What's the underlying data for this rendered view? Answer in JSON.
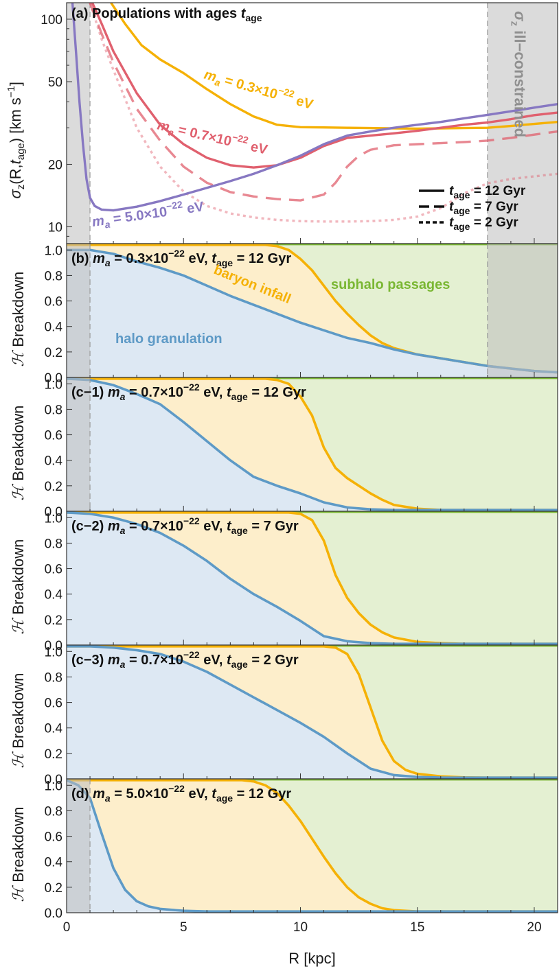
{
  "colors": {
    "orange": "#f5b106",
    "red": "#e0606e",
    "purple": "#8778c2",
    "blue": "#5e9ac6",
    "green": "#7ab733",
    "fill_blue": "#dde8f3",
    "fill_orange": "#fdeecb",
    "fill_green": "#e4f0d2",
    "shade": "#bdbdbd"
  },
  "chart_data": [
    {
      "id": "a",
      "type": "line",
      "title": "(a) Populations with ages",
      "title_var": "t",
      "title_sub": "age",
      "ylabel": "σz(R,tage) [km s−1]",
      "ylabel_parts": {
        "sigma": "σ",
        "z": "z",
        "args": "(R,",
        "t": "t",
        "age": "age",
        "close": ") [km s",
        "exp": "−1",
        "end": "]"
      },
      "yscale": "log",
      "ylim": [
        8.3,
        120
      ],
      "xlim": [
        0,
        21
      ],
      "yticks": [
        10,
        20,
        50,
        100
      ],
      "shaded_regions": [
        [
          0,
          1
        ],
        [
          18,
          21
        ]
      ],
      "shade_label": "σz ill−constrained",
      "shade_label_parts": {
        "sigma": "σ",
        "z": "z",
        "rest": " ill−constrained"
      },
      "annotations": [
        {
          "m": "m",
          "a": "a",
          "text": " = 0.3×10",
          "exp": "−22",
          "unit": " eV",
          "color": "orange"
        },
        {
          "m": "m",
          "a": "a",
          "text": " = 0.7×10",
          "exp": "−22",
          "unit": " eV",
          "color": "red"
        },
        {
          "m": "m",
          "a": "a",
          "text": " = 5.0×10",
          "exp": "−22",
          "unit": " eV",
          "color": "purple"
        }
      ],
      "legend": [
        {
          "t": "t",
          "sub": "age",
          "label": " = 12 Gyr",
          "dash": "solid"
        },
        {
          "t": "t",
          "sub": "age",
          "label": " = 7 Gyr",
          "dash": "dashed"
        },
        {
          "t": "t",
          "sub": "age",
          "label": " = 2 Gyr",
          "dash": "dotted"
        }
      ],
      "series": [
        {
          "name": "m_a = 0.3×10^−22 eV",
          "color": "orange",
          "dash": "solid",
          "x": [
            1.9,
            2.5,
            3.2,
            4.0,
            5.0,
            6.0,
            7.0,
            8.0,
            9.0,
            10.0,
            11.0,
            12.0,
            13.0,
            14.0,
            15.0,
            16.0,
            17.0,
            18.0,
            19.0,
            20.0,
            21.0
          ],
          "y": [
            120,
            95,
            75,
            64,
            55,
            46,
            39,
            34,
            31,
            30.2,
            30.1,
            30,
            29.9,
            29.8,
            29.7,
            29.8,
            29.9,
            30.0,
            30.6,
            31.3,
            32.0
          ]
        },
        {
          "name": "m_a = 0.7×10^−22 eV",
          "color": "red",
          "dash": "solid",
          "x": [
            1.1,
            1.5,
            2.0,
            3.0,
            4.0,
            5.0,
            6.0,
            7.0,
            8.0,
            9.0,
            10.0,
            11.0,
            12.0,
            13.0,
            14.0,
            15.0,
            16.0,
            17.0,
            18.0,
            19.0,
            20.0,
            21.0
          ],
          "y": [
            120,
            95,
            70,
            44,
            31,
            25,
            21.5,
            19.8,
            19.3,
            19.8,
            21.5,
            24.5,
            26.8,
            27.5,
            28.2,
            29.0,
            30.0,
            31.0,
            31.8,
            33.0,
            34.5,
            35.5
          ]
        },
        {
          "name": "m_a = 0.7×10^−22 eV, t_age = 7 Gyr",
          "color": "red",
          "dash": "dashed",
          "x": [
            1.0,
            1.5,
            2.0,
            3.0,
            4.0,
            5.0,
            6.0,
            7.0,
            8.0,
            9.0,
            10.0,
            11.0,
            11.5,
            12.0,
            12.5,
            13.0,
            14.0,
            15.0,
            16.0,
            17.0,
            18.0,
            19.0,
            20.0,
            21.0
          ],
          "y": [
            120,
            85,
            62,
            37,
            26,
            19.5,
            16.3,
            14.7,
            14.0,
            13.6,
            13.4,
            14.3,
            16.3,
            19.5,
            22.0,
            23.5,
            24.7,
            25.0,
            25.3,
            25.6,
            26.0,
            26.8,
            27.8,
            28.8
          ]
        },
        {
          "name": "m_a = 0.7×10^−22 eV, t_age = 2 Gyr",
          "color": "red",
          "dash": "dotted",
          "x": [
            1.0,
            1.5,
            2.0,
            3.0,
            4.0,
            5.0,
            6.0,
            7.0,
            8.0,
            9.0,
            10.0,
            11.0,
            12.0,
            13.0,
            14.0,
            15.0,
            16.0,
            17.0,
            18.0,
            19.0,
            20.0,
            21.0
          ],
          "y": [
            120,
            80,
            57,
            30,
            19.5,
            14.8,
            12.6,
            11.6,
            11.1,
            10.8,
            10.65,
            10.6,
            10.6,
            10.65,
            10.8,
            11.2,
            12.3,
            14.5,
            16.2,
            17.0,
            17.5,
            18.0
          ]
        },
        {
          "name": "m_a = 5.0×10^−22 eV",
          "color": "purple",
          "dash": "solid",
          "x": [
            0.25,
            0.4,
            0.55,
            0.7,
            0.85,
            1.0,
            1.2,
            1.5,
            2.0,
            3.0,
            4.0,
            5.0,
            6.0,
            7.0,
            8.0,
            9.0,
            10.0,
            11.0,
            12.0,
            13.0,
            14.0,
            15.0,
            16.0,
            17.0,
            18.0,
            19.0,
            20.0,
            21.0
          ],
          "y": [
            120,
            70,
            40,
            25,
            17,
            13.8,
            12.6,
            12.1,
            12.0,
            12.5,
            13.3,
            14.3,
            15.4,
            16.6,
            18.0,
            19.8,
            22.0,
            25.0,
            27.5,
            28.8,
            30.0,
            31.0,
            32.0,
            33.3,
            34.6,
            36.0,
            37.5,
            39.0
          ]
        }
      ]
    },
    {
      "id": "b",
      "type": "area",
      "title_prefix": "(b) ",
      "m": "m",
      "a": "a",
      "title_mass": " = 0.3×10",
      "exp": "−22",
      "title_rest": " eV, ",
      "t": "t",
      "sub": "age",
      "title_age": " = 12 Gyr",
      "ylabel": "Breakdown",
      "ylabel_sym": "ℋ",
      "ylim": [
        0,
        1.05
      ],
      "xlim": [
        0,
        21
      ],
      "yticks": [
        "0.0",
        "0.2",
        "0.4",
        "0.6",
        "0.8",
        "1.0"
      ],
      "shaded_regions": [
        [
          0,
          1
        ],
        [
          18,
          21
        ]
      ],
      "labels": {
        "granulation": "halo granulation",
        "infall": "baryon infall",
        "subhalo": "subhalo passages"
      },
      "granulation": {
        "x": [
          0,
          1,
          2,
          3,
          4,
          5,
          6,
          7,
          8,
          9,
          10,
          11,
          12,
          13,
          14,
          15,
          16,
          17,
          18,
          19,
          20,
          21
        ],
        "y": [
          1.0,
          1.0,
          0.97,
          0.91,
          0.86,
          0.8,
          0.72,
          0.64,
          0.57,
          0.5,
          0.43,
          0.37,
          0.31,
          0.27,
          0.22,
          0.18,
          0.15,
          0.12,
          0.09,
          0.07,
          0.05,
          0.04
        ]
      },
      "infall": {
        "x": [
          0,
          8.5,
          9.0,
          9.5,
          10.0,
          10.5,
          11.0,
          11.5,
          12.0,
          12.5,
          13.0,
          13.5,
          14.0,
          15.0,
          16.0,
          17.0,
          18.0,
          19.0,
          20.0,
          21.0
        ],
        "y": [
          1.04,
          1.04,
          1.03,
          1.0,
          0.93,
          0.84,
          0.72,
          0.6,
          0.5,
          0.41,
          0.33,
          0.27,
          0.23,
          0.18,
          0.15,
          0.12,
          0.09,
          0.07,
          0.05,
          0.04
        ]
      }
    },
    {
      "id": "c-1",
      "type": "area",
      "title_prefix": "(c−1) ",
      "m": "m",
      "a": "a",
      "title_mass": " = 0.7×10",
      "exp": "−22",
      "title_rest": " eV, ",
      "t": "t",
      "sub": "age",
      "title_age": " = 12 Gyr",
      "ylabel": "Breakdown",
      "ylabel_sym": "ℋ",
      "ylim": [
        0,
        1.05
      ],
      "xlim": [
        0,
        21
      ],
      "yticks": [
        "0.0",
        "0.2",
        "0.4",
        "0.6",
        "0.8",
        "1.0"
      ],
      "shaded_regions": [
        [
          0,
          1
        ]
      ],
      "granulation": {
        "x": [
          0,
          1,
          2,
          3,
          4,
          5,
          6,
          7,
          8,
          9,
          10,
          11,
          12,
          13,
          14,
          15,
          16,
          17,
          18,
          19,
          20,
          21
        ],
        "y": [
          1.04,
          1.03,
          0.99,
          0.92,
          0.84,
          0.7,
          0.55,
          0.4,
          0.27,
          0.2,
          0.14,
          0.07,
          0.03,
          0.015,
          0.01,
          0.01,
          0.01,
          0.01,
          0.01,
          0.01,
          0.01,
          0.01
        ]
      },
      "infall": {
        "x": [
          0,
          8.5,
          9.0,
          9.5,
          10.0,
          10.5,
          11.0,
          11.5,
          12.0,
          12.5,
          13.0,
          13.5,
          14.0,
          15.0,
          16.0,
          17.0,
          18.0,
          19.0,
          20.0,
          21.0
        ],
        "y": [
          1.04,
          1.04,
          1.03,
          1.0,
          0.9,
          0.75,
          0.5,
          0.34,
          0.26,
          0.2,
          0.14,
          0.09,
          0.05,
          0.02,
          0.01,
          0.01,
          0.01,
          0.01,
          0.01,
          0.01
        ]
      }
    },
    {
      "id": "c-2",
      "type": "area",
      "title_prefix": "(c−2) ",
      "m": "m",
      "a": "a",
      "title_mass": " = 0.7×10",
      "exp": "−22",
      "title_rest": " eV, ",
      "t": "t",
      "sub": "age",
      "title_age": " = 7 Gyr",
      "ylabel": "Breakdown",
      "ylabel_sym": "ℋ",
      "ylim": [
        0,
        1.05
      ],
      "xlim": [
        0,
        21
      ],
      "yticks": [
        "0.0",
        "0.2",
        "0.4",
        "0.6",
        "0.8",
        "1.0"
      ],
      "shaded_regions": [],
      "granulation": {
        "x": [
          0,
          1,
          2,
          3,
          4,
          5,
          6,
          7,
          8,
          9,
          10,
          11,
          12,
          13,
          14,
          15,
          16,
          17,
          18,
          19,
          20,
          21
        ],
        "y": [
          1.04,
          1.03,
          1.0,
          0.95,
          0.88,
          0.78,
          0.66,
          0.52,
          0.4,
          0.3,
          0.19,
          0.07,
          0.03,
          0.015,
          0.01,
          0.01,
          0.01,
          0.01,
          0.01,
          0.01,
          0.01,
          0.01
        ]
      },
      "infall": {
        "x": [
          0,
          9.5,
          10.0,
          10.5,
          11.0,
          11.5,
          12.0,
          12.5,
          13.0,
          13.5,
          14.0,
          15.0,
          16.0,
          17.0,
          18.0,
          19.0,
          20.0,
          21.0
        ],
        "y": [
          1.04,
          1.04,
          1.03,
          0.98,
          0.82,
          0.55,
          0.37,
          0.25,
          0.16,
          0.1,
          0.06,
          0.025,
          0.015,
          0.01,
          0.01,
          0.01,
          0.01,
          0.01
        ]
      }
    },
    {
      "id": "c-3",
      "type": "area",
      "title_prefix": "(c−3) ",
      "m": "m",
      "a": "a",
      "title_mass": " = 0.7×10",
      "exp": "−22",
      "title_rest": " eV, ",
      "t": "t",
      "sub": "age",
      "title_age": " = 2 Gyr",
      "ylabel": "Breakdown",
      "ylabel_sym": "ℋ",
      "ylim": [
        0,
        1.05
      ],
      "xlim": [
        0,
        21
      ],
      "yticks": [
        "0.0",
        "0.2",
        "0.4",
        "0.6",
        "0.8",
        "1.0"
      ],
      "shaded_regions": [],
      "granulation": {
        "x": [
          0,
          1,
          2,
          3,
          4,
          5,
          6,
          7,
          8,
          9,
          10,
          11,
          12,
          13,
          14,
          15,
          16,
          17,
          18,
          19,
          20,
          21
        ],
        "y": [
          1.04,
          1.04,
          1.03,
          1.01,
          0.98,
          0.92,
          0.84,
          0.74,
          0.64,
          0.54,
          0.44,
          0.33,
          0.2,
          0.08,
          0.03,
          0.015,
          0.01,
          0.01,
          0.01,
          0.01,
          0.01,
          0.01
        ]
      },
      "infall": {
        "x": [
          0,
          11.0,
          11.5,
          12.0,
          12.5,
          13.0,
          13.5,
          14.0,
          14.5,
          15.0,
          16.0,
          17.0,
          18.0,
          19.0,
          20.0,
          21.0
        ],
        "y": [
          1.04,
          1.04,
          1.03,
          0.98,
          0.82,
          0.56,
          0.3,
          0.14,
          0.07,
          0.04,
          0.02,
          0.012,
          0.01,
          0.01,
          0.01,
          0.01
        ]
      }
    },
    {
      "id": "d",
      "type": "area",
      "title_prefix": "(d) ",
      "m": "m",
      "a": "a",
      "title_mass": " = 5.0×10",
      "exp": "−22",
      "title_rest": " eV, ",
      "t": "t",
      "sub": "age",
      "title_age": " = 12 Gyr",
      "ylabel": "Breakdown",
      "ylabel_sym": "ℋ",
      "ylim": [
        0,
        1.05
      ],
      "xlim": [
        0,
        21
      ],
      "yticks": [
        "0.0",
        "0.2",
        "0.4",
        "0.6",
        "0.8",
        "1.0"
      ],
      "xticks": [
        0,
        5,
        10,
        15,
        20
      ],
      "xlabel": "R [kpc]",
      "shaded_regions": [
        [
          0,
          1
        ]
      ],
      "granulation": {
        "x": [
          0,
          0.5,
          1.0,
          1.5,
          2.0,
          2.5,
          3.0,
          3.5,
          4.0,
          5.0,
          6.0,
          7.0,
          8.0,
          10.0,
          12.0,
          15.0,
          18.0,
          21.0
        ],
        "y": [
          1.04,
          1.0,
          0.9,
          0.62,
          0.35,
          0.18,
          0.09,
          0.05,
          0.03,
          0.015,
          0.01,
          0.01,
          0.01,
          0.01,
          0.01,
          0.01,
          0.01,
          0.01
        ]
      },
      "infall": {
        "x": [
          0,
          7.5,
          8.0,
          8.5,
          9.0,
          9.5,
          10.0,
          10.5,
          11.0,
          11.5,
          12.0,
          12.5,
          13.0,
          13.5,
          14.0,
          15.0,
          16.0,
          18.0,
          21.0
        ],
        "y": [
          1.04,
          1.04,
          1.03,
          1.0,
          0.94,
          0.84,
          0.72,
          0.58,
          0.44,
          0.31,
          0.2,
          0.12,
          0.07,
          0.035,
          0.02,
          0.01,
          0.01,
          0.01,
          0.01
        ]
      }
    }
  ]
}
